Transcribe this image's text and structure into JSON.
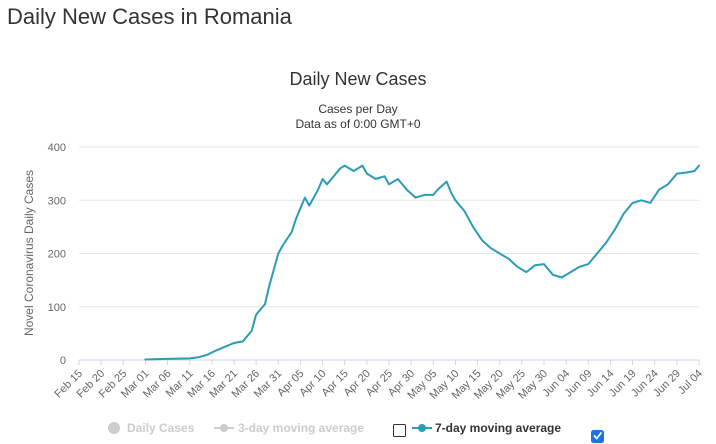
{
  "page": {
    "title": "Daily New Cases in Romania"
  },
  "colors": {
    "series": "#2b9cb5",
    "inactive": "#cccccc",
    "checkbox": "#1a73e8"
  },
  "legend": {
    "items": [
      {
        "label": "Daily Cases",
        "active": false,
        "icon": "circle-marker"
      },
      {
        "label": "3-day moving average",
        "active": false,
        "icon": "line-with-marker",
        "checked": false
      },
      {
        "label": "7-day moving average",
        "active": true,
        "icon": "line-with-marker",
        "checked": true
      }
    ]
  },
  "chart_data": {
    "type": "line",
    "title": "Daily New Cases",
    "subtitle": "Cases per Day",
    "subtitle2": "Data as of 0:00 GMT+0",
    "ylabel": "Novel Coronavirus Daily Cases",
    "ylim": [
      0,
      400
    ],
    "yticks": [
      0,
      100,
      200,
      300,
      400
    ],
    "xlim": [
      "Feb 15",
      "Jul 04"
    ],
    "xticks": [
      "Feb 15",
      "Feb 20",
      "Feb 25",
      "Mar 01",
      "Mar 06",
      "Mar 11",
      "Mar 16",
      "Mar 21",
      "Mar 26",
      "Mar 31",
      "Apr 05",
      "Apr 10",
      "Apr 15",
      "Apr 20",
      "Apr 25",
      "Apr 30",
      "May 05",
      "May 10",
      "May 15",
      "May 20",
      "May 25",
      "May 30",
      "Jun 04",
      "Jun 09",
      "Jun 14",
      "Jun 19",
      "Jun 24",
      "Jun 29",
      "Jul 04"
    ],
    "grid": true,
    "series": [
      {
        "name": "7-day moving average",
        "x": [
          "Mar 01",
          "Mar 06",
          "Mar 11",
          "Mar 13",
          "Mar 15",
          "Mar 17",
          "Mar 19",
          "Mar 21",
          "Mar 23",
          "Mar 25",
          "Mar 26",
          "Mar 28",
          "Mar 29",
          "Mar 31",
          "Apr 01",
          "Apr 03",
          "Apr 04",
          "Apr 06",
          "Apr 07",
          "Apr 09",
          "Apr 10",
          "Apr 11",
          "Apr 12",
          "Apr 14",
          "Apr 15",
          "Apr 17",
          "Apr 19",
          "Apr 20",
          "Apr 22",
          "Apr 24",
          "Apr 25",
          "Apr 27",
          "Apr 29",
          "May 01",
          "May 03",
          "May 05",
          "May 06",
          "May 08",
          "May 09",
          "May 10",
          "May 12",
          "May 14",
          "May 16",
          "May 18",
          "May 20",
          "May 22",
          "May 24",
          "May 26",
          "May 28",
          "May 30",
          "Jun 01",
          "Jun 03",
          "Jun 05",
          "Jun 07",
          "Jun 09",
          "Jun 11",
          "Jun 13",
          "Jun 15",
          "Jun 17",
          "Jun 19",
          "Jun 21",
          "Jun 23",
          "Jun 25",
          "Jun 27",
          "Jun 29",
          "Jul 01",
          "Jul 03",
          "Jul 04"
        ],
        "values": [
          1,
          2,
          3,
          5,
          10,
          18,
          25,
          32,
          35,
          55,
          85,
          105,
          140,
          200,
          215,
          240,
          265,
          305,
          290,
          320,
          340,
          330,
          340,
          360,
          365,
          355,
          365,
          350,
          340,
          345,
          330,
          340,
          320,
          305,
          310,
          310,
          320,
          335,
          315,
          300,
          280,
          250,
          225,
          210,
          200,
          190,
          175,
          165,
          178,
          180,
          160,
          155,
          165,
          175,
          180,
          200,
          220,
          245,
          275,
          295,
          300,
          295,
          320,
          330,
          350,
          352,
          355,
          365
        ]
      }
    ]
  }
}
